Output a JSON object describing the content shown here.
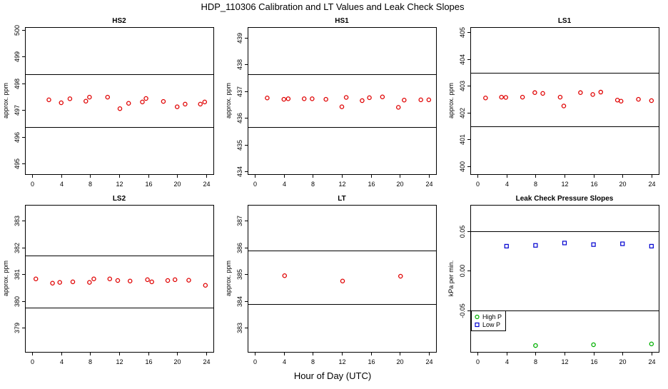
{
  "figure_title": "HDP_110306  Calibration and LT Values and Leak Check Slopes",
  "x_axis_label": "Hour of Day (UTC)",
  "colors": {
    "cal_points": "#e00000",
    "high_p": "#00b000",
    "low_p": "#0000d0",
    "reference_lines": "#000000"
  },
  "chart_data": [
    {
      "title": "HS2",
      "type": "scatter",
      "ylabel": "approx. ppm",
      "xlim": [
        -1,
        25
      ],
      "ylim": [
        494.6,
        500.1
      ],
      "xticks": [
        "0",
        "4",
        "8",
        "12",
        "16",
        "20",
        "24"
      ],
      "xtick_values": [
        0,
        4,
        8,
        12,
        16,
        20,
        24
      ],
      "yticks": [
        "495",
        "496",
        "497",
        "498",
        "499",
        "500"
      ],
      "ytick_values": [
        495,
        496,
        497,
        498,
        499,
        500
      ],
      "ref_lines": [
        498.35,
        496.35
      ],
      "series": [
        {
          "name": "calibration",
          "marker": "circle",
          "color": "#e00000",
          "x": [
            2.3,
            4.0,
            5.2,
            7.4,
            7.9,
            10.4,
            12.1,
            13.3,
            15.2,
            15.7,
            18.1,
            20.0,
            21.1,
            23.2,
            23.8
          ],
          "y": [
            497.38,
            497.27,
            497.42,
            497.33,
            497.48,
            497.48,
            497.05,
            497.25,
            497.3,
            497.43,
            497.32,
            497.12,
            497.22,
            497.22,
            497.3
          ]
        }
      ]
    },
    {
      "title": "HS1",
      "type": "scatter",
      "ylabel": "approx. ppm",
      "xlim": [
        -1,
        25
      ],
      "ylim": [
        433.9,
        439.4
      ],
      "xticks": [
        "0",
        "4",
        "8",
        "12",
        "16",
        "20",
        "24"
      ],
      "xtick_values": [
        0,
        4,
        8,
        12,
        16,
        20,
        24
      ],
      "yticks": [
        "434",
        "435",
        "436",
        "437",
        "438",
        "439"
      ],
      "ytick_values": [
        434,
        435,
        436,
        437,
        438,
        439
      ],
      "ref_lines": [
        437.65,
        435.65
      ],
      "series": [
        {
          "name": "calibration",
          "marker": "circle",
          "color": "#e00000",
          "x": [
            1.7,
            4.0,
            4.6,
            6.8,
            7.9,
            9.8,
            12.0,
            12.6,
            14.8,
            15.8,
            17.6,
            19.8,
            20.6,
            22.9,
            24.0
          ],
          "y": [
            436.75,
            436.7,
            436.72,
            436.72,
            436.72,
            436.7,
            436.42,
            436.77,
            436.65,
            436.76,
            436.79,
            436.4,
            436.67,
            436.68,
            436.68
          ]
        }
      ]
    },
    {
      "title": "LS1",
      "type": "scatter",
      "ylabel": "approx. ppm",
      "xlim": [
        -1,
        25
      ],
      "ylim": [
        399.7,
        405.2
      ],
      "xticks": [
        "0",
        "4",
        "8",
        "12",
        "16",
        "20",
        "24"
      ],
      "xtick_values": [
        0,
        4,
        8,
        12,
        16,
        20,
        24
      ],
      "yticks": [
        "400",
        "401",
        "402",
        "403",
        "404",
        "405"
      ],
      "ytick_values": [
        400,
        401,
        402,
        403,
        404,
        405
      ],
      "ref_lines": [
        403.5,
        401.5
      ],
      "series": [
        {
          "name": "calibration",
          "marker": "circle",
          "color": "#e00000",
          "x": [
            1.1,
            3.3,
            3.9,
            6.2,
            7.9,
            9.0,
            11.4,
            11.9,
            14.2,
            15.9,
            17.0,
            19.3,
            19.8,
            22.2,
            24.0
          ],
          "y": [
            402.55,
            402.58,
            402.57,
            402.58,
            402.75,
            402.72,
            402.58,
            402.25,
            402.75,
            402.68,
            402.77,
            402.47,
            402.43,
            402.5,
            402.45
          ]
        }
      ]
    },
    {
      "title": "LS2",
      "type": "scatter",
      "ylabel": "approx. ppm",
      "xlim": [
        -1,
        25
      ],
      "ylim": [
        378.1,
        383.6
      ],
      "xticks": [
        "0",
        "4",
        "8",
        "12",
        "16",
        "20",
        "24"
      ],
      "xtick_values": [
        0,
        4,
        8,
        12,
        16,
        20,
        24
      ],
      "yticks": [
        "379",
        "380",
        "381",
        "382",
        "383"
      ],
      "ytick_values": [
        379,
        380,
        381,
        382,
        383
      ],
      "ref_lines": [
        381.7,
        379.75
      ],
      "series": [
        {
          "name": "calibration",
          "marker": "circle",
          "color": "#e00000",
          "x": [
            0.5,
            2.8,
            3.8,
            5.6,
            7.9,
            8.5,
            10.7,
            11.8,
            13.5,
            15.9,
            16.5,
            18.7,
            19.7,
            21.6,
            23.9
          ],
          "y": [
            380.83,
            380.67,
            380.7,
            380.72,
            380.7,
            380.83,
            380.83,
            380.77,
            380.75,
            380.8,
            380.72,
            380.77,
            380.8,
            380.78,
            380.59
          ]
        }
      ]
    },
    {
      "title": "LT",
      "type": "scatter",
      "ylabel": "approx. ppm",
      "xlim": [
        -1,
        25
      ],
      "ylim": [
        382.1,
        387.6
      ],
      "xticks": [
        "0",
        "4",
        "8",
        "12",
        "16",
        "20",
        "24"
      ],
      "xtick_values": [
        0,
        4,
        8,
        12,
        16,
        20,
        24
      ],
      "yticks": [
        "383",
        "384",
        "385",
        "386",
        "387"
      ],
      "ytick_values": [
        383,
        384,
        385,
        386,
        387
      ],
      "ref_lines": [
        385.9,
        383.9
      ],
      "series": [
        {
          "name": "calibration",
          "marker": "circle",
          "color": "#e00000",
          "x": [
            4.1,
            12.1,
            20.1
          ],
          "y": [
            384.95,
            384.75,
            384.93
          ]
        }
      ]
    },
    {
      "title": "Leak Check Pressure Slopes",
      "type": "scatter",
      "ylabel": "kPa per min.",
      "xlim": [
        -1,
        25
      ],
      "ylim": [
        -0.102,
        0.083
      ],
      "xticks": [
        "0",
        "4",
        "8",
        "12",
        "16",
        "20",
        "24"
      ],
      "xtick_values": [
        0,
        4,
        8,
        12,
        16,
        20,
        24
      ],
      "yticks": [
        "-0.05",
        "0.00",
        "0.05"
      ],
      "ytick_values": [
        -0.05,
        0.0,
        0.05
      ],
      "ref_lines": [
        0.05,
        -0.05
      ],
      "legend": {
        "placement": "bottom-left",
        "entries": [
          "High P",
          "Low P"
        ]
      },
      "series": [
        {
          "name": "High P",
          "marker": "circle",
          "color": "#00b000",
          "x": [
            8,
            16,
            24
          ],
          "y": [
            -0.094,
            -0.093,
            -0.092
          ]
        },
        {
          "name": "Low P",
          "marker": "square",
          "color": "#0000d0",
          "x": [
            4,
            8,
            12,
            16,
            20,
            24
          ],
          "y": [
            0.031,
            0.032,
            0.035,
            0.033,
            0.034,
            0.031
          ]
        }
      ]
    }
  ]
}
